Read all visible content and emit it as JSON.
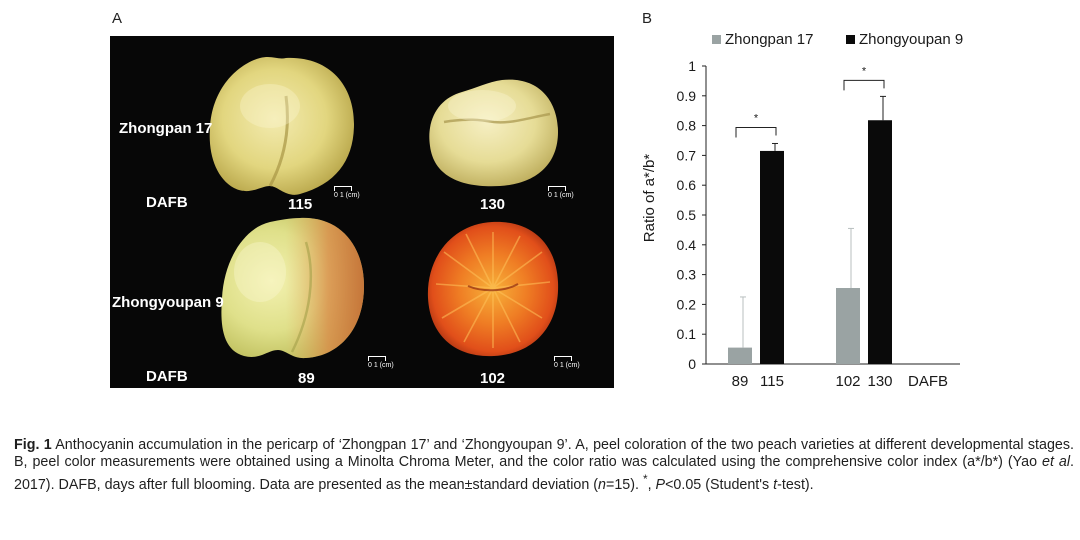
{
  "panel_a": {
    "letter": "A",
    "variety_top": "Zhongpan 17",
    "variety_bottom": "Zhongyoupan 9",
    "dafb_label": "DAFB",
    "stages": [
      "115",
      "130",
      "89",
      "102"
    ],
    "scale_text": "0   1 (cm)",
    "colors": {
      "background": "#070707",
      "pale_fruit": "#e3d883",
      "red_fruit": "#e7561d"
    }
  },
  "panel_b": {
    "letter": "B"
  },
  "chart_data": {
    "type": "bar",
    "title": "",
    "ylabel": "Ratio of a*/b*",
    "xlabel": "DAFB",
    "ylim": [
      0,
      1
    ],
    "yticks": [
      "0",
      "0.1",
      "0.2",
      "0.3",
      "0.4",
      "0.5",
      "0.6",
      "0.7",
      "0.8",
      "0.9",
      "1"
    ],
    "legend_position": "top",
    "groups": [
      {
        "labels": [
          "89",
          "115"
        ],
        "significance": "*"
      },
      {
        "labels": [
          "102",
          "130"
        ],
        "significance": "*"
      }
    ],
    "series": [
      {
        "name": "Zhongpan 17",
        "color": "#9aa3a3",
        "values": [
          0.055,
          0.255
        ],
        "errors": [
          0.17,
          0.2
        ]
      },
      {
        "name": "Zhongyoupan 9",
        "color": "#0a0a0a",
        "values": [
          0.715,
          0.818
        ],
        "errors": [
          0.025,
          0.08
        ]
      }
    ]
  },
  "caption": {
    "fig_label": "Fig. 1",
    "part1": "  Anthocyanin accumulation in the pericarp of ‘Zhongpan 17’ and ‘Zhongyoupan 9’.  A, peel coloration of the two peach varieties at different developmental stages.  B, peel color measurements were obtained using a Minolta Chroma Meter, and the color ratio was calculated using the comprehensive color index (a*/b*) (Yao ",
    "et_al": "et al",
    "part2": ". 2017).  DAFB, days after full blooming.  Data are presented as the mean±standard deviation (",
    "n": "n",
    "part3": "=15).  ",
    "star": "*",
    "part4": ", ",
    "p": "P",
    "part5": "<0.05 (Student's ",
    "t": "t",
    "part6": "-test)."
  }
}
